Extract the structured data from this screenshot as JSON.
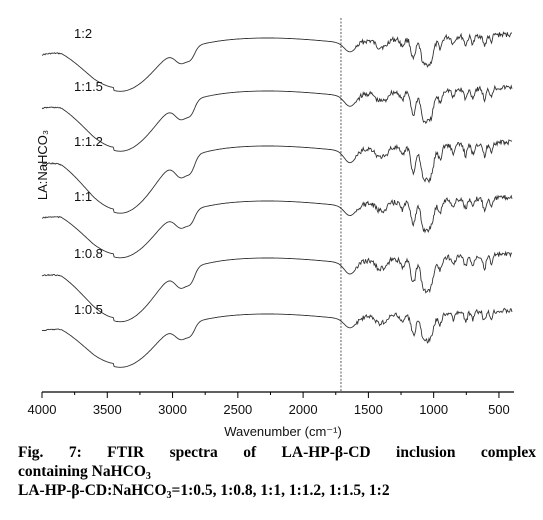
{
  "chart_data": {
    "type": "line",
    "xlabel": "Wavenumber (cm⁻¹)",
    "ylabel": "LA:NaHCO₃",
    "xlim": [
      4000,
      400
    ],
    "x_reversed": true,
    "x_ticks": [
      "4000",
      "3500",
      "3000",
      "2500",
      "2000",
      "1500",
      "1000",
      "500"
    ],
    "reference_line": 1710,
    "y_axis_values": false,
    "series": [
      {
        "name": "1:2"
      },
      {
        "name": "1:1.5"
      },
      {
        "name": "1:1.2"
      },
      {
        "name": "1:1"
      },
      {
        "name": "1:0.8"
      },
      {
        "name": "1:0.5"
      }
    ]
  },
  "caption": {
    "line1": "Fig. 7: FTIR spectra of LA-HP-β-CD inclusion complex",
    "line2_main": "containing NaHCO",
    "line2_sub": "3",
    "line3_a": "LA-HP-β-CD:NaHCO",
    "line3_sub": "3",
    "line3_b": "=1:0.5, 1:0.8, 1:1, 1:1.2, 1:1.5, 1:2"
  }
}
